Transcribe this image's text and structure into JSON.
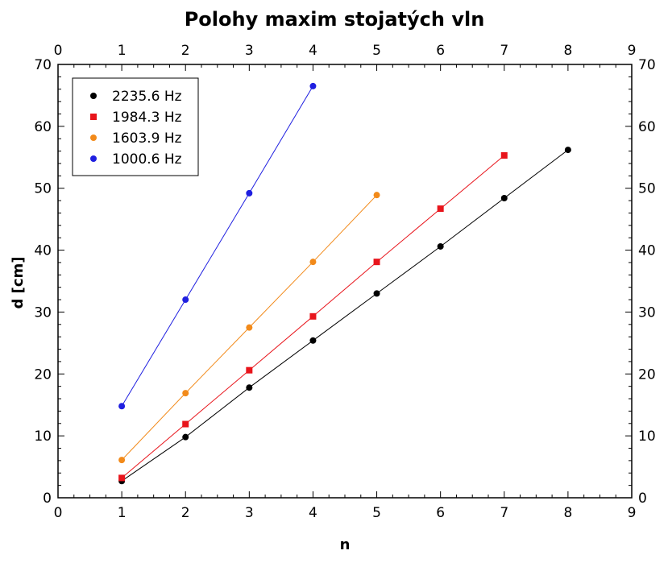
{
  "chart_data": {
    "type": "scatter",
    "title": "Polohy maxim stojatých vln",
    "xlabel": "n",
    "ylabel": "d [cm]",
    "xlim": [
      0,
      9
    ],
    "ylim": [
      0,
      70
    ],
    "xticks": [
      "0",
      "1",
      "2",
      "3",
      "4",
      "5",
      "6",
      "7",
      "8",
      "9"
    ],
    "yticks": [
      "0",
      "10",
      "20",
      "30",
      "40",
      "50",
      "60",
      "70"
    ],
    "legend_position": "top-left",
    "grid": false,
    "series": [
      {
        "name": "2235.6 Hz",
        "marker": "circle",
        "color": "#000000",
        "x": [
          1,
          2,
          3,
          4,
          5,
          6,
          7,
          8
        ],
        "y": [
          2.7,
          9.8,
          17.8,
          25.4,
          33.0,
          40.6,
          48.4,
          56.2
        ]
      },
      {
        "name": "1984.3 Hz",
        "marker": "square",
        "color": "#e8141b",
        "x": [
          1,
          2,
          3,
          4,
          5,
          6,
          7
        ],
        "y": [
          3.2,
          11.9,
          20.6,
          29.3,
          38.1,
          46.7,
          55.3
        ]
      },
      {
        "name": "1603.9 Hz",
        "marker": "circle",
        "color": "#f28a1a",
        "x": [
          1,
          2,
          3,
          4,
          5
        ],
        "y": [
          6.1,
          16.9,
          27.5,
          38.1,
          48.9
        ]
      },
      {
        "name": "1000.6 Hz",
        "marker": "circle",
        "color": "#1f1fe0",
        "x": [
          1,
          2,
          3,
          4
        ],
        "y": [
          14.8,
          32.0,
          49.2,
          66.5
        ]
      }
    ]
  }
}
